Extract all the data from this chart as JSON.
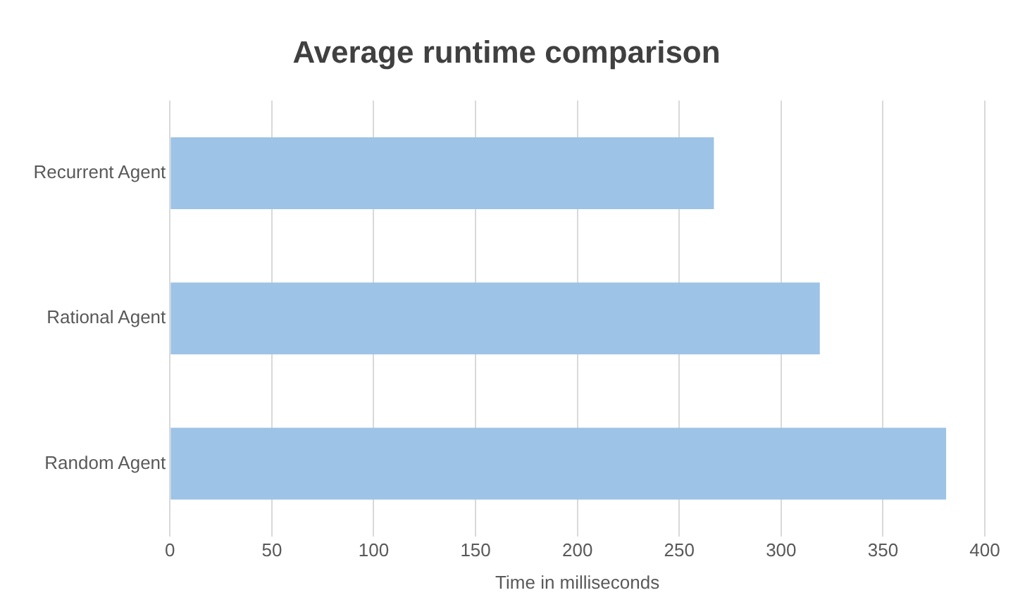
{
  "chart_data": {
    "type": "bar",
    "orientation": "horizontal",
    "title": "Average runtime comparison",
    "xlabel": "Time in milliseconds",
    "categories": [
      "Recurrent Agent",
      "Rational Agent",
      "Random Agent"
    ],
    "values": [
      267,
      319,
      381
    ],
    "color": "#9dc3e6",
    "xlim": [
      0,
      400
    ],
    "xticks": [
      0,
      50,
      100,
      150,
      200,
      250,
      300,
      350,
      400
    ],
    "grid": "x",
    "legend": false
  }
}
